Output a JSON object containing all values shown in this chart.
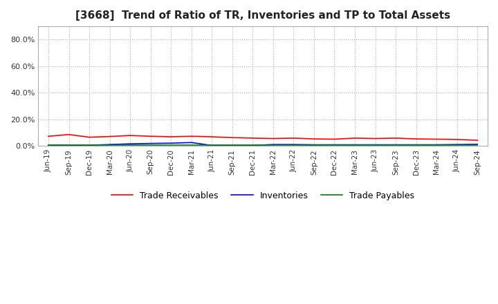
{
  "title": "[3668]  Trend of Ratio of TR, Inventories and TP to Total Assets",
  "labels": [
    "Jun-19",
    "Sep-19",
    "Dec-19",
    "Mar-20",
    "Jun-20",
    "Sep-20",
    "Dec-20",
    "Mar-21",
    "Jun-21",
    "Sep-21",
    "Dec-21",
    "Mar-22",
    "Jun-22",
    "Sep-22",
    "Dec-22",
    "Mar-23",
    "Jun-23",
    "Sep-23",
    "Dec-23",
    "Mar-24",
    "Jun-24",
    "Sep-24"
  ],
  "trade_receivables": [
    7.2,
    8.5,
    6.5,
    7.0,
    7.8,
    7.2,
    6.8,
    7.2,
    6.8,
    6.2,
    5.8,
    5.5,
    5.8,
    5.2,
    5.0,
    5.8,
    5.5,
    5.8,
    5.2,
    5.0,
    4.8,
    4.2
  ],
  "inventories": [
    0.5,
    0.4,
    0.4,
    1.0,
    1.5,
    1.8,
    2.0,
    2.5,
    0.3,
    0.3,
    0.3,
    1.0,
    1.0,
    0.8,
    0.8,
    0.8,
    0.8,
    0.8,
    0.8,
    0.8,
    1.0,
    1.2
  ],
  "trade_payables": [
    0.3,
    0.3,
    0.3,
    0.3,
    0.3,
    0.3,
    0.3,
    0.3,
    0.3,
    0.3,
    0.3,
    0.3,
    0.3,
    0.3,
    0.3,
    0.3,
    0.3,
    0.3,
    0.3,
    0.3,
    0.3,
    0.3
  ],
  "tr_color": "#FF0000",
  "inv_color": "#0000FF",
  "tp_color": "#008000",
  "ylim": [
    0,
    90
  ],
  "yticks": [
    0,
    20,
    40,
    60,
    80
  ],
  "ytick_labels": [
    "0.0%",
    "20.0%",
    "40.0%",
    "60.0%",
    "80.0%"
  ],
  "background_color": "#FFFFFF",
  "plot_bg_color": "#FFFFFF",
  "grid_color": "#AAAAAA",
  "legend_labels": [
    "Trade Receivables",
    "Inventories",
    "Trade Payables"
  ]
}
